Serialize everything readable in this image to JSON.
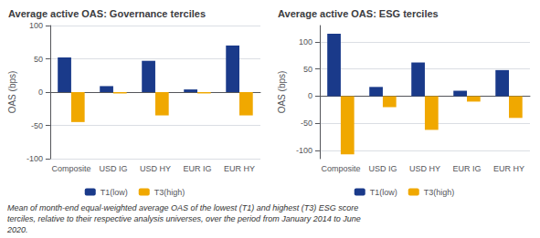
{
  "chart_data": [
    {
      "type": "bar",
      "title": "Average active OAS: Governance terciles",
      "categories": [
        "Composite",
        "USD IG",
        "USD HY",
        "EUR IG",
        "EUR HY"
      ],
      "series": [
        {
          "name": "T1(low)",
          "color": "#1a3a8a",
          "values": [
            52,
            9,
            47,
            4,
            70
          ]
        },
        {
          "name": "T3(high)",
          "color": "#f0a800",
          "values": [
            -45,
            -2,
            -35,
            -2,
            -35
          ]
        }
      ],
      "ylabel": "OAS (bps)",
      "ylim": [
        -100,
        100
      ],
      "yticks": [
        -100,
        -50,
        0,
        50,
        100
      ],
      "grid": true,
      "legend": "bottom"
    },
    {
      "type": "bar",
      "title": "Average active OAS: ESG terciles",
      "categories": [
        "Composite",
        "USD IG",
        "USD HY",
        "EUR IG",
        "EUR HY"
      ],
      "series": [
        {
          "name": "T1(low)",
          "color": "#1a3a8a",
          "values": [
            115,
            17,
            62,
            10,
            48
          ]
        },
        {
          "name": "T3(high)",
          "color": "#f0a800",
          "values": [
            -107,
            -20,
            -62,
            -10,
            -40
          ]
        }
      ],
      "ylabel": "OAS (bps)",
      "ylim": [
        -115,
        130
      ],
      "yticks": [
        -100,
        -50,
        0,
        50,
        100
      ],
      "grid": true,
      "legend": "bottom"
    }
  ],
  "footnote": "Mean of month-end equal-weighted average OAS of the lowest (T1) and highest (T3) ESG score\nterciles, relative to their respective analysis universes, over the period from January 2014 to June\n2020."
}
